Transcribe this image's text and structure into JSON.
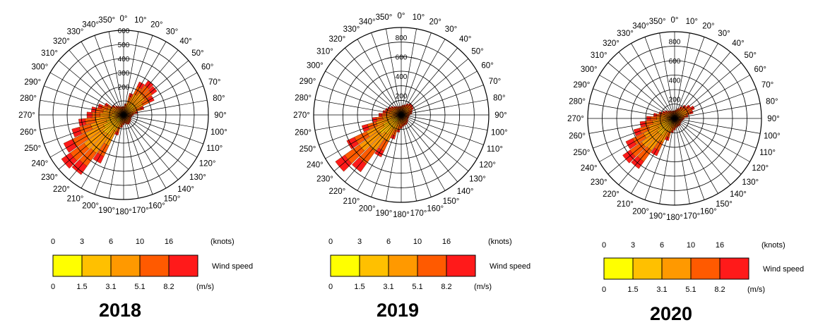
{
  "colors": {
    "bins": [
      "#ffff00",
      "#ffc000",
      "#ff9900",
      "#ff5a00",
      "#ff1a1a"
    ],
    "grid": "#000000"
  },
  "chart_data": [
    {
      "type": "wind-rose",
      "title": "2018",
      "direction_labels": [
        "0°",
        "10°",
        "20°",
        "30°",
        "40°",
        "50°",
        "60°",
        "70°",
        "80°",
        "90°",
        "100°",
        "110°",
        "120°",
        "130°",
        "140°",
        "150°",
        "160°",
        "170°",
        "180°",
        "190°",
        "200°",
        "210°",
        "220°",
        "230°",
        "240°",
        "250°",
        "260°",
        "270°",
        "280°",
        "290°",
        "300°",
        "310°",
        "320°",
        "330°",
        "340°",
        "350°"
      ],
      "radial_ticks": [
        200,
        300,
        400,
        500,
        600
      ],
      "rmax": 600,
      "legend": {
        "label": "Wind speed",
        "knots_unit": "(knots)",
        "ms_unit": "(m/s)",
        "knots": [
          "0",
          "3",
          "6",
          "10",
          "16"
        ],
        "ms": [
          "0",
          "1.5",
          "3.1",
          "5.1",
          "8.2"
        ]
      },
      "petals": [
        {
          "dir": 0,
          "total": 60
        },
        {
          "dir": 10,
          "total": 80
        },
        {
          "dir": 20,
          "total": 160
        },
        {
          "dir": 30,
          "total": 260
        },
        {
          "dir": 40,
          "total": 300
        },
        {
          "dir": 50,
          "total": 290
        },
        {
          "dir": 60,
          "total": 240
        },
        {
          "dir": 70,
          "total": 150
        },
        {
          "dir": 80,
          "total": 100
        },
        {
          "dir": 90,
          "total": 70
        },
        {
          "dir": 100,
          "total": 60
        },
        {
          "dir": 110,
          "total": 55
        },
        {
          "dir": 120,
          "total": 60
        },
        {
          "dir": 130,
          "total": 65
        },
        {
          "dir": 140,
          "total": 70
        },
        {
          "dir": 150,
          "total": 75
        },
        {
          "dir": 160,
          "total": 70
        },
        {
          "dir": 170,
          "total": 60
        },
        {
          "dir": 180,
          "total": 70
        },
        {
          "dir": 190,
          "total": 90
        },
        {
          "dir": 200,
          "total": 150
        },
        {
          "dir": 210,
          "total": 380
        },
        {
          "dir": 220,
          "total": 520
        },
        {
          "dir": 230,
          "total": 540
        },
        {
          "dir": 240,
          "total": 470
        },
        {
          "dir": 250,
          "total": 380
        },
        {
          "dir": 260,
          "total": 320
        },
        {
          "dir": 270,
          "total": 260
        },
        {
          "dir": 280,
          "total": 230
        },
        {
          "dir": 290,
          "total": 190
        },
        {
          "dir": 300,
          "total": 150
        },
        {
          "dir": 310,
          "total": 100
        },
        {
          "dir": 320,
          "total": 80
        },
        {
          "dir": 330,
          "total": 70
        },
        {
          "dir": 340,
          "total": 60
        },
        {
          "dir": 350,
          "total": 60
        }
      ]
    },
    {
      "type": "wind-rose",
      "title": "2019",
      "direction_labels": [
        "0°",
        "10°",
        "20°",
        "30°",
        "40°",
        "50°",
        "60°",
        "70°",
        "80°",
        "90°",
        "100°",
        "110°",
        "120°",
        "130°",
        "140°",
        "150°",
        "160°",
        "170°",
        "180°",
        "190°",
        "200°",
        "210°",
        "220°",
        "230°",
        "240°",
        "250°",
        "260°",
        "270°",
        "280°",
        "290°",
        "300°",
        "310°",
        "320°",
        "330°",
        "340°",
        "350°"
      ],
      "radial_ticks": [
        200,
        400,
        600,
        800
      ],
      "rmax": 900,
      "legend": {
        "label": "Wind speed",
        "knots_unit": "(knots)",
        "ms_unit": "(m/s)",
        "knots": [
          "0",
          "3",
          "6",
          "10",
          "16"
        ],
        "ms": [
          "0",
          "1.5",
          "3.1",
          "5.1",
          "8.2"
        ]
      },
      "petals": [
        {
          "dir": 0,
          "total": 90
        },
        {
          "dir": 10,
          "total": 100
        },
        {
          "dir": 20,
          "total": 110
        },
        {
          "dir": 30,
          "total": 130
        },
        {
          "dir": 40,
          "total": 150
        },
        {
          "dir": 50,
          "total": 150
        },
        {
          "dir": 60,
          "total": 140
        },
        {
          "dir": 70,
          "total": 120
        },
        {
          "dir": 80,
          "total": 110
        },
        {
          "dir": 90,
          "total": 90
        },
        {
          "dir": 100,
          "total": 80
        },
        {
          "dir": 110,
          "total": 80
        },
        {
          "dir": 120,
          "total": 80
        },
        {
          "dir": 130,
          "total": 90
        },
        {
          "dir": 140,
          "total": 100
        },
        {
          "dir": 150,
          "total": 110
        },
        {
          "dir": 160,
          "total": 110
        },
        {
          "dir": 170,
          "total": 120
        },
        {
          "dir": 180,
          "total": 140
        },
        {
          "dir": 190,
          "total": 180
        },
        {
          "dir": 200,
          "total": 260
        },
        {
          "dir": 210,
          "total": 480
        },
        {
          "dir": 220,
          "total": 720
        },
        {
          "dir": 230,
          "total": 830
        },
        {
          "dir": 240,
          "total": 620
        },
        {
          "dir": 250,
          "total": 420
        },
        {
          "dir": 260,
          "total": 300
        },
        {
          "dir": 270,
          "total": 230
        },
        {
          "dir": 280,
          "total": 190
        },
        {
          "dir": 290,
          "total": 170
        },
        {
          "dir": 300,
          "total": 150
        },
        {
          "dir": 310,
          "total": 130
        },
        {
          "dir": 320,
          "total": 110
        },
        {
          "dir": 330,
          "total": 100
        },
        {
          "dir": 340,
          "total": 90
        },
        {
          "dir": 350,
          "total": 90
        }
      ]
    },
    {
      "type": "wind-rose",
      "title": "2020",
      "direction_labels": [
        "0°",
        "10°",
        "20°",
        "30°",
        "40°",
        "50°",
        "60°",
        "70°",
        "80°",
        "90°",
        "100°",
        "110°",
        "120°",
        "130°",
        "140°",
        "150°",
        "160°",
        "170°",
        "180°",
        "190°",
        "200°",
        "210°",
        "220°",
        "230°",
        "240°",
        "250°",
        "260°",
        "270°",
        "280°",
        "290°",
        "300°",
        "310°",
        "320°",
        "330°",
        "340°",
        "350°"
      ],
      "radial_ticks": [
        200,
        400,
        600,
        800
      ],
      "rmax": 900,
      "legend": {
        "label": "Wind speed",
        "knots_unit": "(knots)",
        "ms_unit": "(m/s)",
        "knots": [
          "0",
          "3",
          "6",
          "10",
          "16"
        ],
        "ms": [
          "0",
          "1.5",
          "3.1",
          "5.1",
          "8.2"
        ]
      },
      "petals": [
        {
          "dir": 0,
          "total": 80
        },
        {
          "dir": 10,
          "total": 90
        },
        {
          "dir": 20,
          "total": 110
        },
        {
          "dir": 30,
          "total": 140
        },
        {
          "dir": 40,
          "total": 170
        },
        {
          "dir": 50,
          "total": 200
        },
        {
          "dir": 60,
          "total": 230
        },
        {
          "dir": 70,
          "total": 200
        },
        {
          "dir": 80,
          "total": 140
        },
        {
          "dir": 90,
          "total": 100
        },
        {
          "dir": 100,
          "total": 90
        },
        {
          "dir": 110,
          "total": 80
        },
        {
          "dir": 120,
          "total": 80
        },
        {
          "dir": 130,
          "total": 80
        },
        {
          "dir": 140,
          "total": 90
        },
        {
          "dir": 150,
          "total": 90
        },
        {
          "dir": 160,
          "total": 90
        },
        {
          "dir": 170,
          "total": 100
        },
        {
          "dir": 180,
          "total": 120
        },
        {
          "dir": 190,
          "total": 150
        },
        {
          "dir": 200,
          "total": 240
        },
        {
          "dir": 210,
          "total": 430
        },
        {
          "dir": 220,
          "total": 640
        },
        {
          "dir": 230,
          "total": 660
        },
        {
          "dir": 240,
          "total": 560
        },
        {
          "dir": 250,
          "total": 440
        },
        {
          "dir": 260,
          "total": 360
        },
        {
          "dir": 270,
          "total": 290
        },
        {
          "dir": 280,
          "total": 220
        },
        {
          "dir": 290,
          "total": 170
        },
        {
          "dir": 300,
          "total": 140
        },
        {
          "dir": 310,
          "total": 120
        },
        {
          "dir": 320,
          "total": 100
        },
        {
          "dir": 330,
          "total": 90
        },
        {
          "dir": 340,
          "total": 80
        },
        {
          "dir": 350,
          "total": 80
        }
      ]
    }
  ]
}
